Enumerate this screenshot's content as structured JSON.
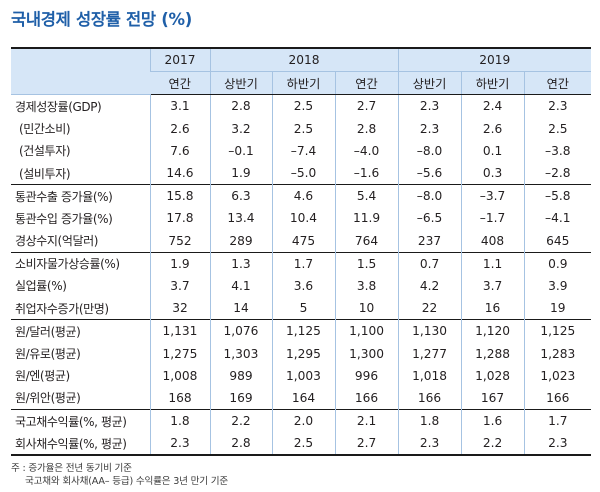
{
  "title": "국내경제 성장률 전망 (%)",
  "years": [
    "2017",
    "2018",
    "2019"
  ],
  "periods": [
    "연간",
    "상반기",
    "하반기",
    "연간",
    "상반기",
    "하반기",
    "연간"
  ],
  "rows": [
    {
      "label": "경제성장률(GDP)",
      "values": [
        "3.1",
        "2.8",
        "2.5",
        "2.7",
        "2.3",
        "2.4",
        "2.3"
      ]
    },
    {
      "label": "(민간소비)",
      "values": [
        "2.6",
        "3.2",
        "2.5",
        "2.8",
        "2.3",
        "2.6",
        "2.5"
      ]
    },
    {
      "label": "(건설투자)",
      "values": [
        "7.6",
        "–0.1",
        "–7.4",
        "–4.0",
        "–8.0",
        "0.1",
        "–3.8"
      ]
    },
    {
      "label": "(설비투자)",
      "values": [
        "14.6",
        "1.9",
        "–5.0",
        "–1.6",
        "–5.6",
        "0.3",
        "–2.8"
      ]
    },
    {
      "label": "통관수출 증가율(%)",
      "values": [
        "15.8",
        "6.3",
        "4.6",
        "5.4",
        "–8.0",
        "–3.7",
        "–5.8"
      ]
    },
    {
      "label": "통관수입 증가율(%)",
      "values": [
        "17.8",
        "13.4",
        "10.4",
        "11.9",
        "–6.5",
        "–1.7",
        "–4.1"
      ]
    },
    {
      "label": "경상수지(억달러)",
      "values": [
        "752",
        "289",
        "475",
        "764",
        "237",
        "408",
        "645"
      ]
    },
    {
      "label": "소비자물가상승률(%)",
      "values": [
        "1.9",
        "1.3",
        "1.7",
        "1.5",
        "0.7",
        "1.1",
        "0.9"
      ]
    },
    {
      "label": "실업률(%)",
      "values": [
        "3.7",
        "4.1",
        "3.6",
        "3.8",
        "4.2",
        "3.7",
        "3.9"
      ]
    },
    {
      "label": "취업자수증가(만명)",
      "values": [
        "32",
        "14",
        "5",
        "10",
        "22",
        "16",
        "19"
      ]
    },
    {
      "label": "원/달러(평균)",
      "values": [
        "1,131",
        "1,076",
        "1,125",
        "1,100",
        "1,130",
        "1,120",
        "1,125"
      ]
    },
    {
      "label": "원/유로(평균)",
      "values": [
        "1,275",
        "1,303",
        "1,295",
        "1,300",
        "1,277",
        "1,288",
        "1,283"
      ]
    },
    {
      "label": "원/엔(평균)",
      "values": [
        "1,008",
        "989",
        "1,003",
        "996",
        "1,018",
        "1,028",
        "1,023"
      ]
    },
    {
      "label": "원/위안(평균)",
      "values": [
        "168",
        "169",
        "164",
        "166",
        "166",
        "167",
        "166"
      ]
    },
    {
      "label": "국고채수익률(%, 평균)",
      "values": [
        "1.8",
        "2.2",
        "2.0",
        "2.1",
        "1.8",
        "1.6",
        "1.7"
      ]
    },
    {
      "label": "회사채수익률(%, 평균)",
      "values": [
        "2.3",
        "2.8",
        "2.5",
        "2.7",
        "2.3",
        "2.2",
        "2.3"
      ]
    }
  ],
  "notes": [
    "주 : 증가율은 전년 동기비 기준",
    "국고채와 회사채(AA– 등급) 수익률은 3년 만기 기준"
  ],
  "colors": {
    "title": "#1f5fa8",
    "header_bg": "#d6e6f7",
    "grid": "#a6c3e2"
  }
}
